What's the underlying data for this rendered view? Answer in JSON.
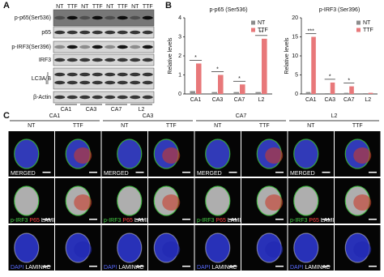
{
  "panel_labels": [
    "A",
    "B",
    "C"
  ],
  "blot": {
    "lanes": [
      "NT",
      "TTF",
      "NT",
      "TTF",
      "NT",
      "TTF",
      "NT",
      "TTF"
    ],
    "rows": [
      "p-p65(Ser536)",
      "p65",
      "p-IRF3(Ser396)",
      "IRF3",
      "LC3A/B",
      "β-Actin"
    ],
    "lc3_bands": [
      "I",
      "II"
    ],
    "cell_lines": [
      "CA1",
      "CA3",
      "CA7",
      "L2"
    ]
  },
  "chart_data": [
    {
      "type": "bar",
      "title": "p-p65 (Ser536)",
      "y_label": "Relative levels",
      "categories": [
        "CA1",
        "CA3",
        "CA7",
        "L2"
      ],
      "series": [
        {
          "name": "NT",
          "color": "#8c8c8c",
          "values": [
            0.15,
            0.1,
            0.1,
            0.1
          ]
        },
        {
          "name": "TTF",
          "color": "#e8787a",
          "values": [
            1.6,
            1.0,
            0.5,
            2.9
          ]
        }
      ],
      "significance": [
        "*",
        "*",
        "*",
        "**"
      ],
      "ylim": [
        0,
        4
      ],
      "yticks": [
        0,
        1,
        2,
        3,
        4
      ],
      "legend": "top-right"
    },
    {
      "type": "bar",
      "title": "p-IRF3 (Ser396)",
      "y_label": "Relative levels",
      "categories": [
        "CA1",
        "CA3",
        "CA7",
        "L2"
      ],
      "series": [
        {
          "name": "NT",
          "color": "#8c8c8c",
          "values": [
            0.5,
            0.2,
            0.3,
            0.2
          ]
        },
        {
          "name": "TTF",
          "color": "#e8787a",
          "values": [
            15,
            3,
            2,
            0.3
          ]
        }
      ],
      "significance": [
        "***",
        "*",
        "*",
        null
      ],
      "ylim": [
        0,
        20
      ],
      "yticks": [
        0,
        5,
        10,
        15,
        20
      ],
      "legend": "top-right"
    }
  ],
  "microscopy": {
    "cell_lines": [
      "CA1",
      "CA3",
      "CA7",
      "L2"
    ],
    "conditions": [
      "NT",
      "TTF"
    ],
    "rows": [
      [
        {
          "text": "MERGED",
          "color": "#ffffff"
        }
      ],
      [
        {
          "text": "p-IRF3",
          "color": "#46d046"
        },
        {
          "text": "P65",
          "color": "#ff4040"
        },
        {
          "text": "LAMINAC",
          "color": "#ffffff"
        }
      ],
      [
        {
          "text": "DAPI",
          "color": "#5a6cff"
        },
        {
          "text": "LAMINAC",
          "color": "#ffffff"
        }
      ]
    ]
  }
}
